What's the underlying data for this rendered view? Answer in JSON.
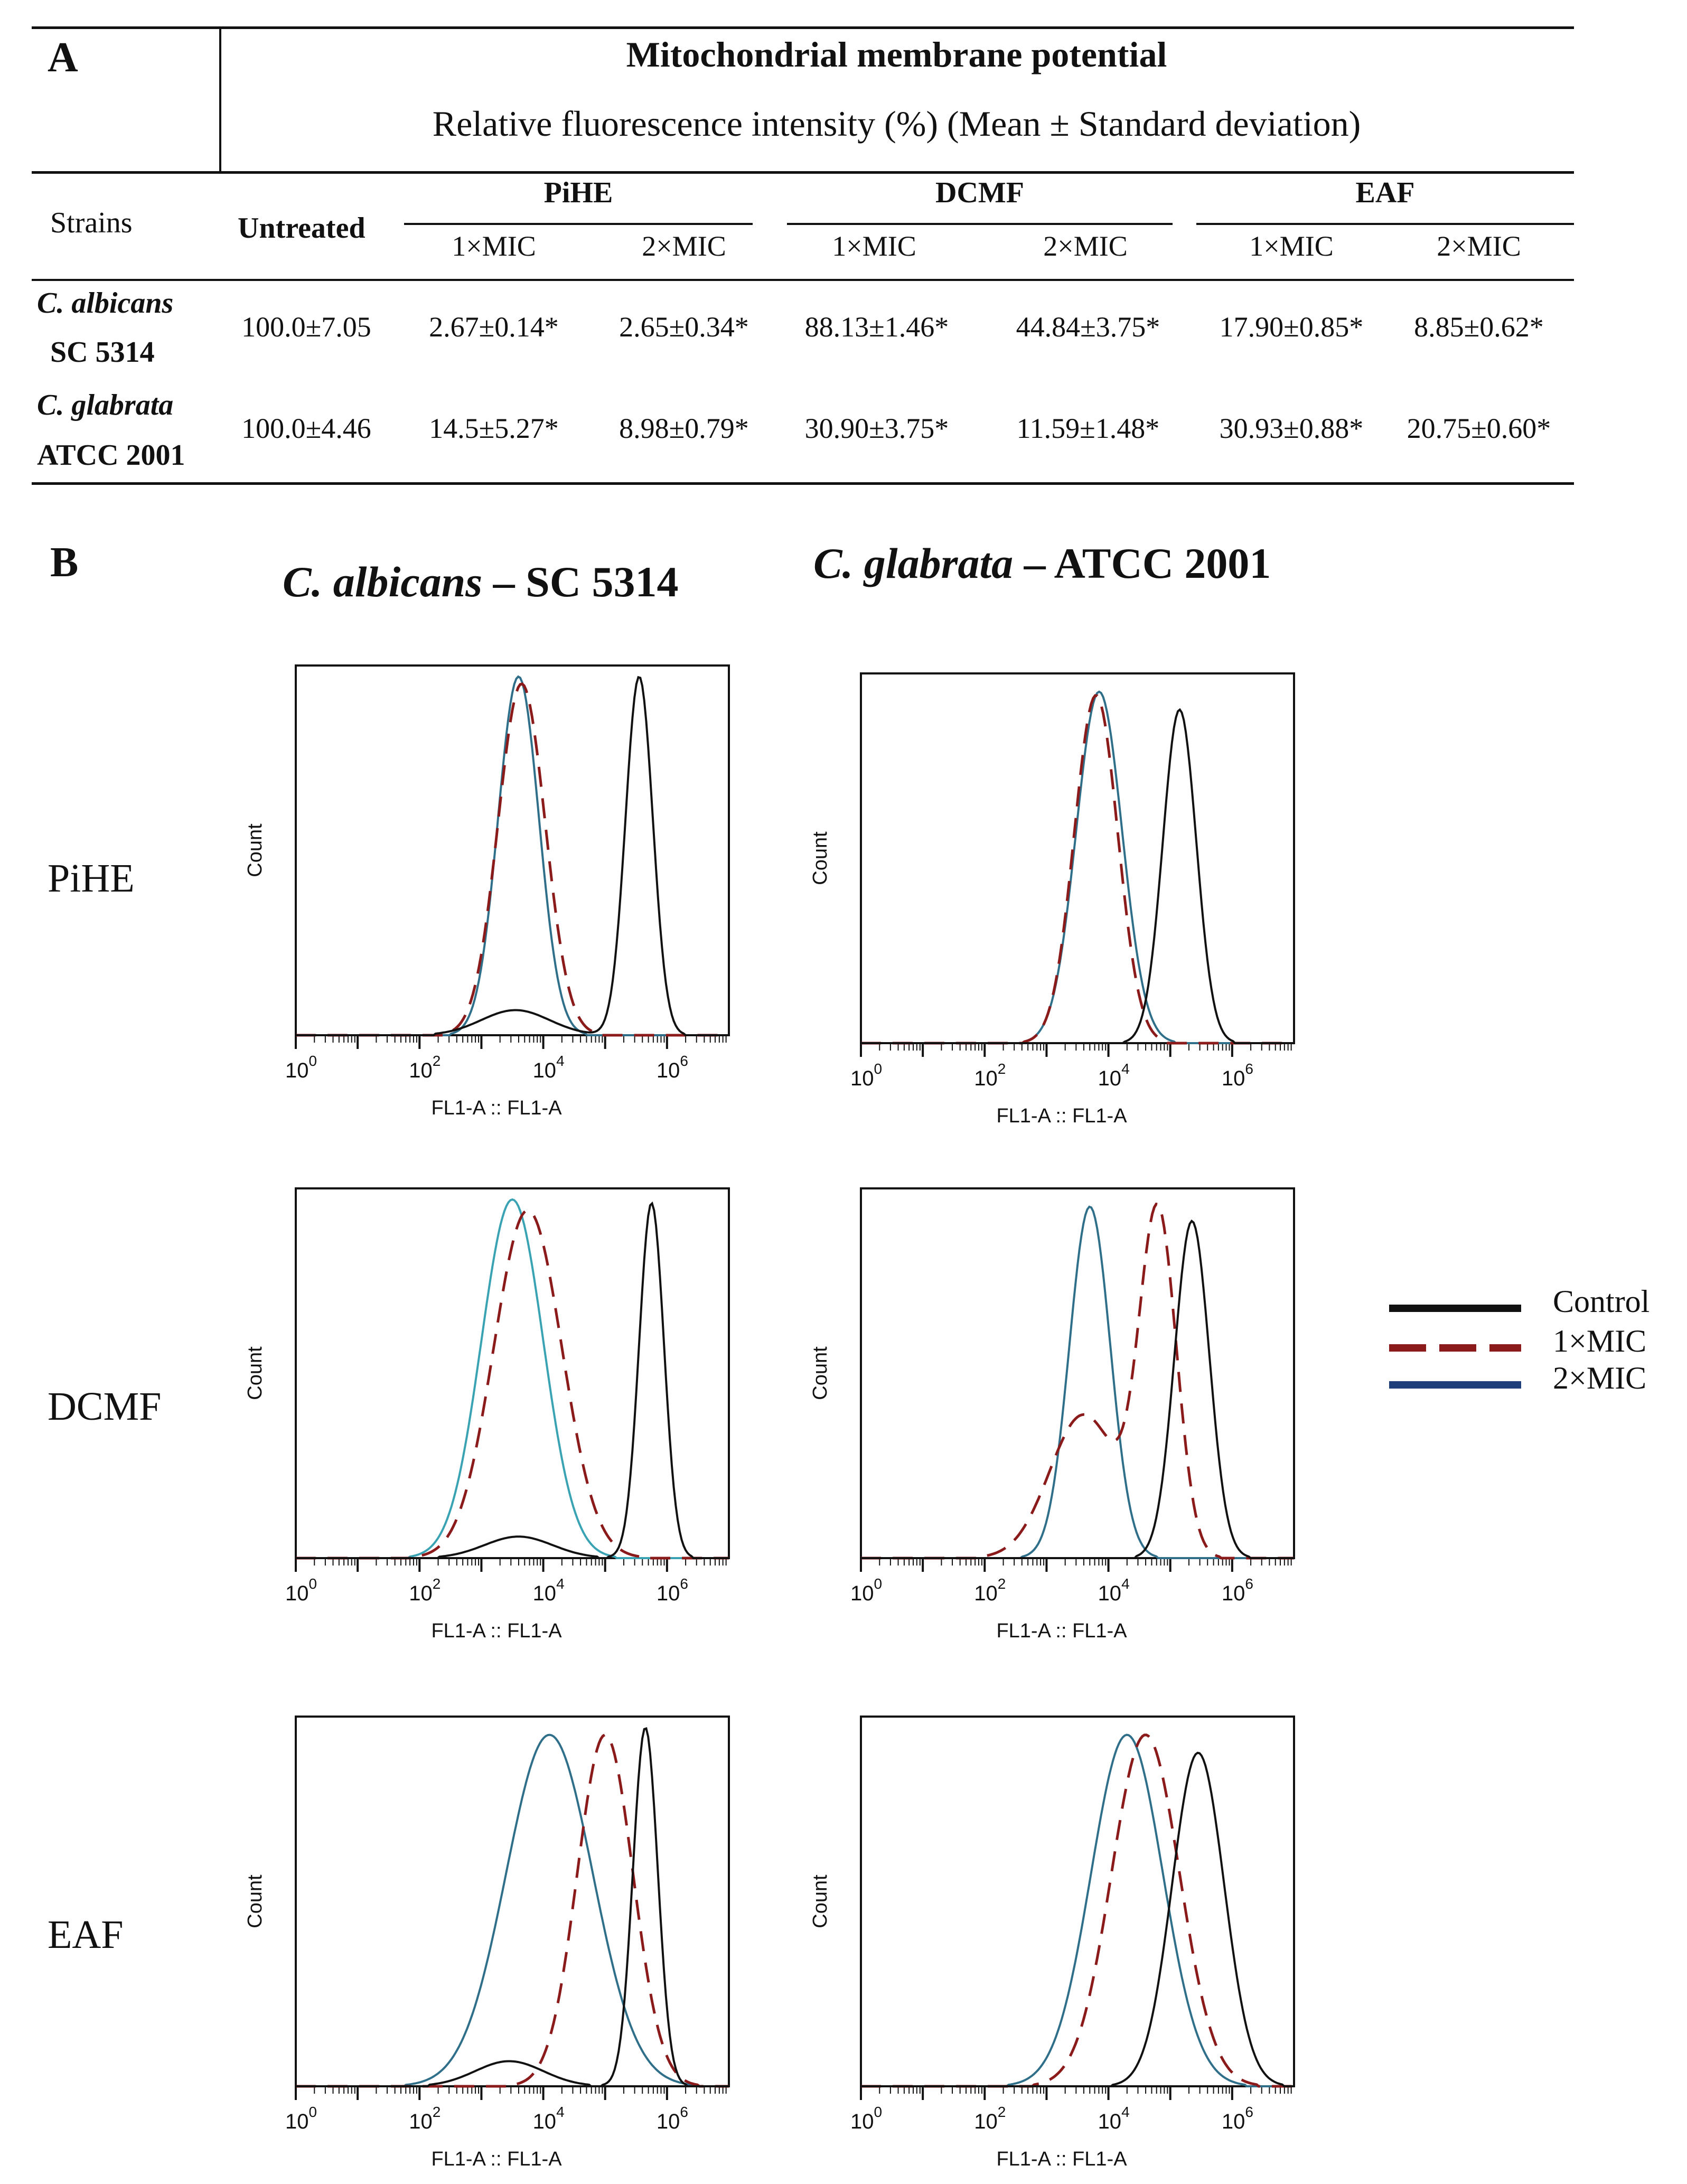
{
  "panel_a": {
    "letter": "A",
    "title": "Mitochondrial membrane potential",
    "subtitle": "Relative fluorescence intensity (%) (Mean ± Standard deviation)",
    "strains_header": "Strains",
    "untreated_header": "Untreated",
    "groups": [
      "PiHE",
      "DCMF",
      "EAF"
    ],
    "subheaders": [
      "1×MIC",
      "2×MIC",
      "1×MIC",
      "2×MIC",
      "1×MIC",
      "2×MIC"
    ],
    "rows": [
      {
        "strain_name": "C. albicans",
        "strain_id": "SC 5314",
        "untreated": "100.0±7.05",
        "values": [
          "2.67±0.14*",
          "2.65±0.34*",
          "88.13±1.46*",
          "44.84±3.75*",
          "17.90±0.85*",
          "8.85±0.62*"
        ]
      },
      {
        "strain_name": "C. glabrata",
        "strain_id": "ATCC 2001",
        "untreated": "100.0±4.46",
        "values": [
          "14.5±5.27*",
          "8.98±0.79*",
          "30.90±3.75*",
          "11.59±1.48*",
          "30.93±0.88*",
          "20.75±0.60*"
        ]
      }
    ]
  },
  "panel_b": {
    "letter": "B",
    "columns": [
      {
        "species": "C. albicans",
        "strain": "– SC 5314"
      },
      {
        "species": "C. glabrata",
        "strain": "– ATCC 2001"
      }
    ],
    "row_labels": [
      "PiHE",
      "DCMF",
      "EAF"
    ],
    "axis": {
      "ylabel": "Count",
      "xlabel": "FL1-A :: FL1-A",
      "tick_base": "10",
      "tick_exponents": [
        "0",
        "2",
        "4",
        "6"
      ]
    },
    "legend": [
      "Control",
      "1×MIC",
      "2×MIC"
    ],
    "colors": {
      "control": "#111111",
      "mic1": "#8b1a1a",
      "mic2_cal": "#2f6f8a",
      "mic2_dcmf": "#3aa3b3"
    }
  },
  "chart_data": {
    "type": "histogram-overlay",
    "x_scale": "log10",
    "xlim": [
      0,
      7
    ],
    "ylim": [
      0,
      1
    ],
    "series_names": [
      "Control",
      "1×MIC",
      "2×MIC"
    ],
    "panels": [
      {
        "row": "PiHE",
        "strain": "C. albicans – SC 5314",
        "control": {
          "peak_log": 5.55,
          "height": 1.0,
          "width": 0.22,
          "shoulder_log": 3.55,
          "shoulder_height": 0.07
        },
        "mic1": {
          "peak_log": 3.65,
          "height": 0.98,
          "width": 0.38
        },
        "mic2": {
          "peak_log": 3.6,
          "height": 1.0,
          "width": 0.33
        }
      },
      {
        "row": "PiHE",
        "strain": "C. glabrata – ATCC 2001",
        "control": {
          "peak_log": 5.15,
          "height": 0.93,
          "width": 0.27
        },
        "mic1": {
          "peak_log": 3.8,
          "height": 0.97,
          "width": 0.35
        },
        "mic2": {
          "peak_log": 3.85,
          "height": 0.98,
          "width": 0.37
        }
      },
      {
        "row": "DCMF",
        "strain": "C. albicans – SC 5314",
        "control": {
          "peak_log": 5.75,
          "height": 0.99,
          "width": 0.2,
          "shoulder_log": 3.6,
          "shoulder_height": 0.06
        },
        "mic1": {
          "peak_log": 3.75,
          "height": 0.97,
          "width": 0.55
        },
        "mic2": {
          "peak_log": 3.5,
          "height": 1.0,
          "width": 0.5
        }
      },
      {
        "row": "DCMF",
        "strain": "C. glabrata – ATCC 2001",
        "control": {
          "peak_log": 5.35,
          "height": 0.94,
          "width": 0.28
        },
        "mic1": {
          "peak_log": 4.8,
          "height": 0.95,
          "width": 0.3,
          "shoulder_log": 3.6,
          "shoulder_height": 0.4
        },
        "mic2": {
          "peak_log": 3.7,
          "height": 0.98,
          "width": 0.33
        }
      },
      {
        "row": "EAF",
        "strain": "C. albicans – SC 5314",
        "control": {
          "peak_log": 5.65,
          "height": 1.0,
          "width": 0.2,
          "shoulder_log": 3.45,
          "shoulder_height": 0.07
        },
        "mic1": {
          "peak_log": 5.0,
          "height": 0.98,
          "width": 0.45
        },
        "mic2": {
          "peak_log": 4.1,
          "height": 0.98,
          "width": 0.7
        }
      },
      {
        "row": "EAF",
        "strain": "C. glabrata – ATCC 2001",
        "control": {
          "peak_log": 5.45,
          "height": 0.93,
          "width": 0.42
        },
        "mic1": {
          "peak_log": 4.6,
          "height": 0.98,
          "width": 0.55
        },
        "mic2": {
          "peak_log": 4.3,
          "height": 0.98,
          "width": 0.58
        }
      }
    ]
  }
}
